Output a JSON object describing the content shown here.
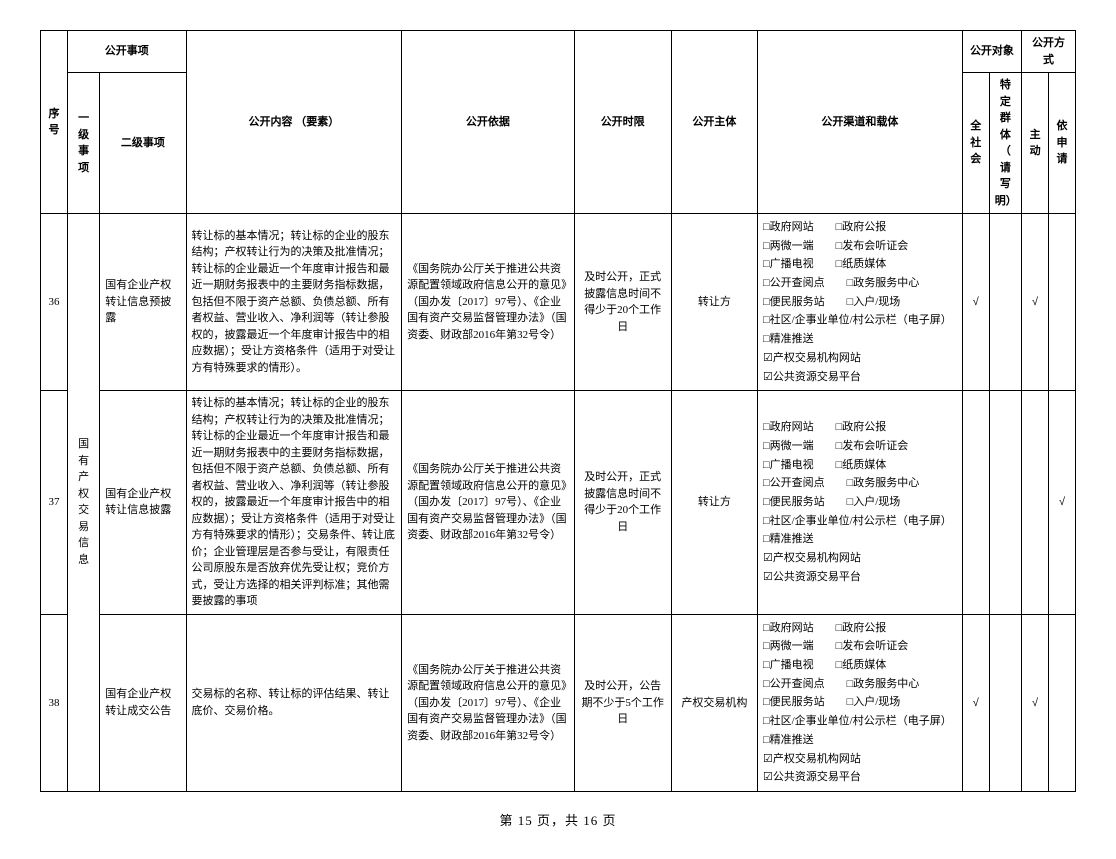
{
  "header": {
    "seq": "序号",
    "item": "公开事项",
    "level1": "一级事项",
    "level2": "二级事项",
    "content": "公开内容\n（要素）",
    "basis": "公开依据",
    "time": "公开时限",
    "subject": "公开主体",
    "channel": "公开渠道和载体",
    "target": "公开对象",
    "society": "全社会",
    "group": "特定群体（请写明）",
    "method": "公开方式",
    "active": "主动",
    "request": "依申请"
  },
  "level1": "国有产权交易信息",
  "rows": [
    {
      "seq": "36",
      "level2": "国有企业产权转让信息预披露",
      "content": "转让标的基本情况；转让标的企业的股东结构；产权转让行为的决策及批准情况；转让标的企业最近一个年度审计报告和最近一期财务报表中的主要财务指标数据，包括但不限于资产总额、负债总额、所有者权益、营业收入、净利润等（转让参股权的，披露最近一个年度审计报告中的相应数据）；受让方资格条件（适用于对受让方有特殊要求的情形）。",
      "basis": "《国务院办公厅关于推进公共资源配置领域政府信息公开的意见》（国办发〔2017〕97号）、《企业国有资产交易监督管理办法》（国资委、财政部2016年第32号令）",
      "time": "及时公开，正式披露信息时间不得少于20个工作日",
      "subject": "转让方",
      "society": "√",
      "group": "",
      "active": "√",
      "request": ""
    },
    {
      "seq": "37",
      "level2": "国有企业产权转让信息披露",
      "content": "转让标的基本情况；转让标的企业的股东结构；产权转让行为的决策及批准情况；转让标的企业最近一个年度审计报告和最近一期财务报表中的主要财务指标数据，包括但不限于资产总额、负债总额、所有者权益、营业收入、净利润等（转让参股权的，披露最近一个年度审计报告中的相应数据）；受让方资格条件（适用于对受让方有特殊要求的情形）；交易条件、转让底价；企业管理层是否参与受让，有限责任公司原股东是否放弃优先受让权；竞价方式，受让方选择的相关评判标准；其他需要披露的事项",
      "basis": "《国务院办公厅关于推进公共资源配置领域政府信息公开的意见》（国办发〔2017〕97号）、《企业国有资产交易监督管理办法》（国资委、财政部2016年第32号令）",
      "time": "及时公开，正式披露信息时间不得少于20个工作日",
      "subject": "转让方",
      "society": "",
      "group": "",
      "active": "",
      "request": "√"
    },
    {
      "seq": "38",
      "level2": "国有企业产权转让成交公告",
      "content": "交易标的名称、转让标的评估结果、转让底价、交易价格。",
      "basis": "《国务院办公厅关于推进公共资源配置领域政府信息公开的意见》（国办发〔2017〕97号）、《企业国有资产交易监督管理办法》（国资委、财政部2016年第32号令）",
      "time": "及时公开，公告期不少于5个工作日",
      "subject": "产权交易机构",
      "society": "√",
      "group": "",
      "active": "√",
      "request": ""
    }
  ],
  "channels": {
    "checked": "☑",
    "unchecked": "□",
    "items": [
      [
        [
          "政府网站",
          false
        ],
        [
          "政府公报",
          false
        ]
      ],
      [
        [
          "两微一端",
          false
        ],
        [
          "发布会听证会",
          false
        ]
      ],
      [
        [
          "广播电视",
          false
        ],
        [
          "纸质媒体",
          false
        ]
      ],
      [
        [
          "公开查阅点",
          false
        ],
        [
          "政务服务中心",
          false
        ]
      ],
      [
        [
          "便民服务站",
          false
        ],
        [
          "入户/现场",
          false
        ]
      ],
      [
        [
          "社区/企事业单位/村公示栏（电子屏）",
          false
        ]
      ],
      [
        [
          "精准推送",
          false
        ]
      ],
      [
        [
          "产权交易机构网站",
          true
        ]
      ],
      [
        [
          "公共资源交易平台",
          true
        ]
      ]
    ]
  },
  "footer": "第 15 页，共 16 页",
  "widths": {
    "seq": 25,
    "l1": 30,
    "l2": 80,
    "content": 200,
    "basis": 160,
    "time": 90,
    "subject": 80,
    "channel": 190,
    "soc": 25,
    "grp": 30,
    "act": 25,
    "req": 25
  }
}
